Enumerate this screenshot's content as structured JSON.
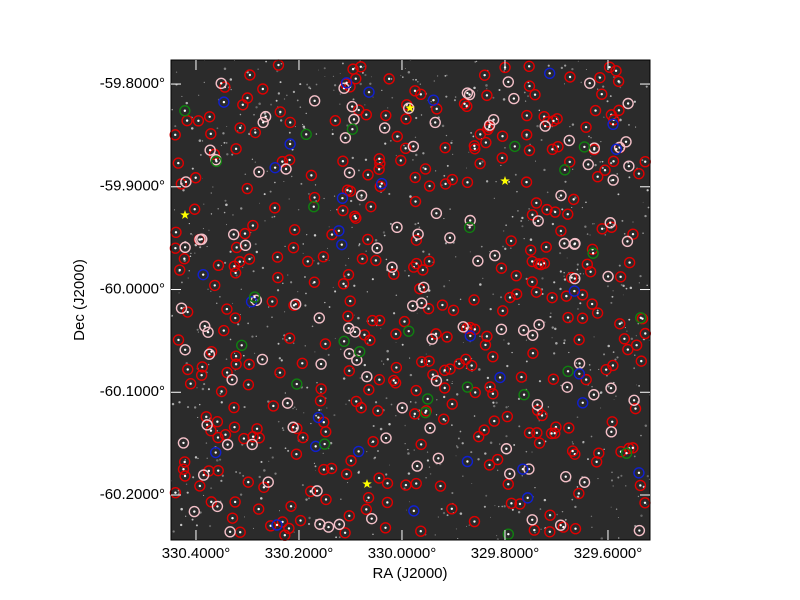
{
  "chart_data": {
    "type": "image",
    "xlabel": "RA (J2000)",
    "ylabel": "Dec (J2000)",
    "xlim": [
      330.4485,
      329.5184
    ],
    "xticks": [
      {
        "value": 330.4,
        "label": "330.4000°"
      },
      {
        "value": 330.2,
        "label": "330.2000°"
      },
      {
        "value": 330.0,
        "label": "330.0000°"
      },
      {
        "value": 329.8,
        "label": "329.8000°"
      },
      {
        "value": 329.6,
        "label": "329.6000°"
      }
    ],
    "ylim": [
      -60.2438,
      -59.7766
    ],
    "yticks": [
      {
        "value": -59.8,
        "label": "-59.8000°"
      },
      {
        "value": -59.9,
        "label": "-59.9000°"
      },
      {
        "value": -60.0,
        "label": "-60.0000°"
      },
      {
        "value": -60.1,
        "label": "-60.1000°"
      },
      {
        "value": -60.2,
        "label": "-60.2000°"
      }
    ]
  }
}
